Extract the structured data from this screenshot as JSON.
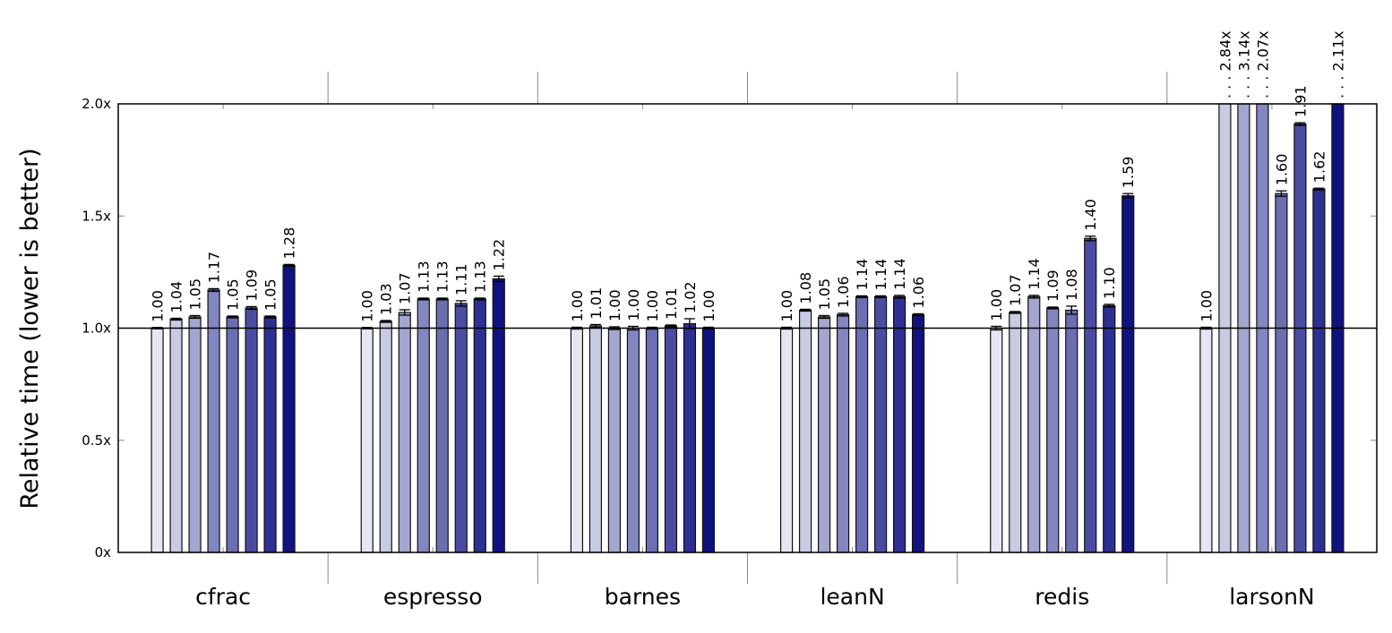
{
  "chart_data": {
    "type": "bar",
    "ylabel": "Relative time (lower is better)",
    "ylim": [
      0,
      2.0
    ],
    "yticks": [
      0,
      0.5,
      1.0,
      1.5,
      2.0
    ],
    "ytick_labels": [
      "0x",
      "0.5x",
      "1.0x",
      "1.5x",
      "2.0x"
    ],
    "reference_line": 1.0,
    "categories": [
      "cfrac",
      "espresso",
      "barnes",
      "leanN",
      "redis",
      "larsonN"
    ],
    "series_colors": [
      "#e6e6f3",
      "#c9cbe3",
      "#a4a6d0",
      "#8386c0",
      "#6c6eb2",
      "#4a4ca3",
      "#2d2f92",
      "#10137f"
    ],
    "series_count": 8,
    "values": [
      [
        1.0,
        1.04,
        1.05,
        1.17,
        1.05,
        1.09,
        1.05,
        1.28
      ],
      [
        1.0,
        1.03,
        1.07,
        1.13,
        1.13,
        1.11,
        1.13,
        1.22
      ],
      [
        1.0,
        1.01,
        1.0,
        1.0,
        1.0,
        1.01,
        1.02,
        1.0
      ],
      [
        1.0,
        1.08,
        1.05,
        1.06,
        1.14,
        1.14,
        1.14,
        1.06
      ],
      [
        1.0,
        1.07,
        1.14,
        1.09,
        1.08,
        1.4,
        1.1,
        1.59
      ],
      [
        1.0,
        2.84,
        3.14,
        2.07,
        1.6,
        1.91,
        1.62,
        2.11
      ]
    ],
    "errors": [
      [
        0.0,
        0.004,
        0.006,
        0.006,
        0.004,
        0.006,
        0.004,
        0.004
      ],
      [
        0.0,
        0.004,
        0.012,
        0.004,
        0.004,
        0.012,
        0.004,
        0.012
      ],
      [
        0.004,
        0.006,
        0.006,
        0.008,
        0.004,
        0.004,
        0.022,
        0.004
      ],
      [
        0.004,
        0.004,
        0.006,
        0.006,
        0.004,
        0.004,
        0.006,
        0.004
      ],
      [
        0.008,
        0.004,
        0.006,
        0.004,
        0.018,
        0.01,
        0.006,
        0.01
      ],
      [
        0.004,
        0.0,
        0.0,
        0.0,
        0.012,
        0.006,
        0.004,
        0.0
      ]
    ],
    "labels": [
      [
        "1.00",
        "1.04",
        "1.05",
        "1.17",
        "1.05",
        "1.09",
        "1.05",
        "1.28"
      ],
      [
        "1.00",
        "1.03",
        "1.07",
        "1.13",
        "1.13",
        "1.11",
        "1.13",
        "1.22"
      ],
      [
        "1.00",
        "1.01",
        "1.00",
        "1.00",
        "1.00",
        "1.01",
        "1.02",
        "1.00"
      ],
      [
        "1.00",
        "1.08",
        "1.05",
        "1.06",
        "1.14",
        "1.14",
        "1.14",
        "1.06"
      ],
      [
        "1.00",
        "1.07",
        "1.14",
        "1.09",
        "1.08",
        "1.40",
        "1.10",
        "1.59"
      ],
      [
        "1.00",
        ". . . 2.84x",
        ". . . 3.14x",
        ". . . 2.07x",
        "1.60",
        "1.91",
        "1.62",
        ". . . 2.11x"
      ]
    ]
  }
}
